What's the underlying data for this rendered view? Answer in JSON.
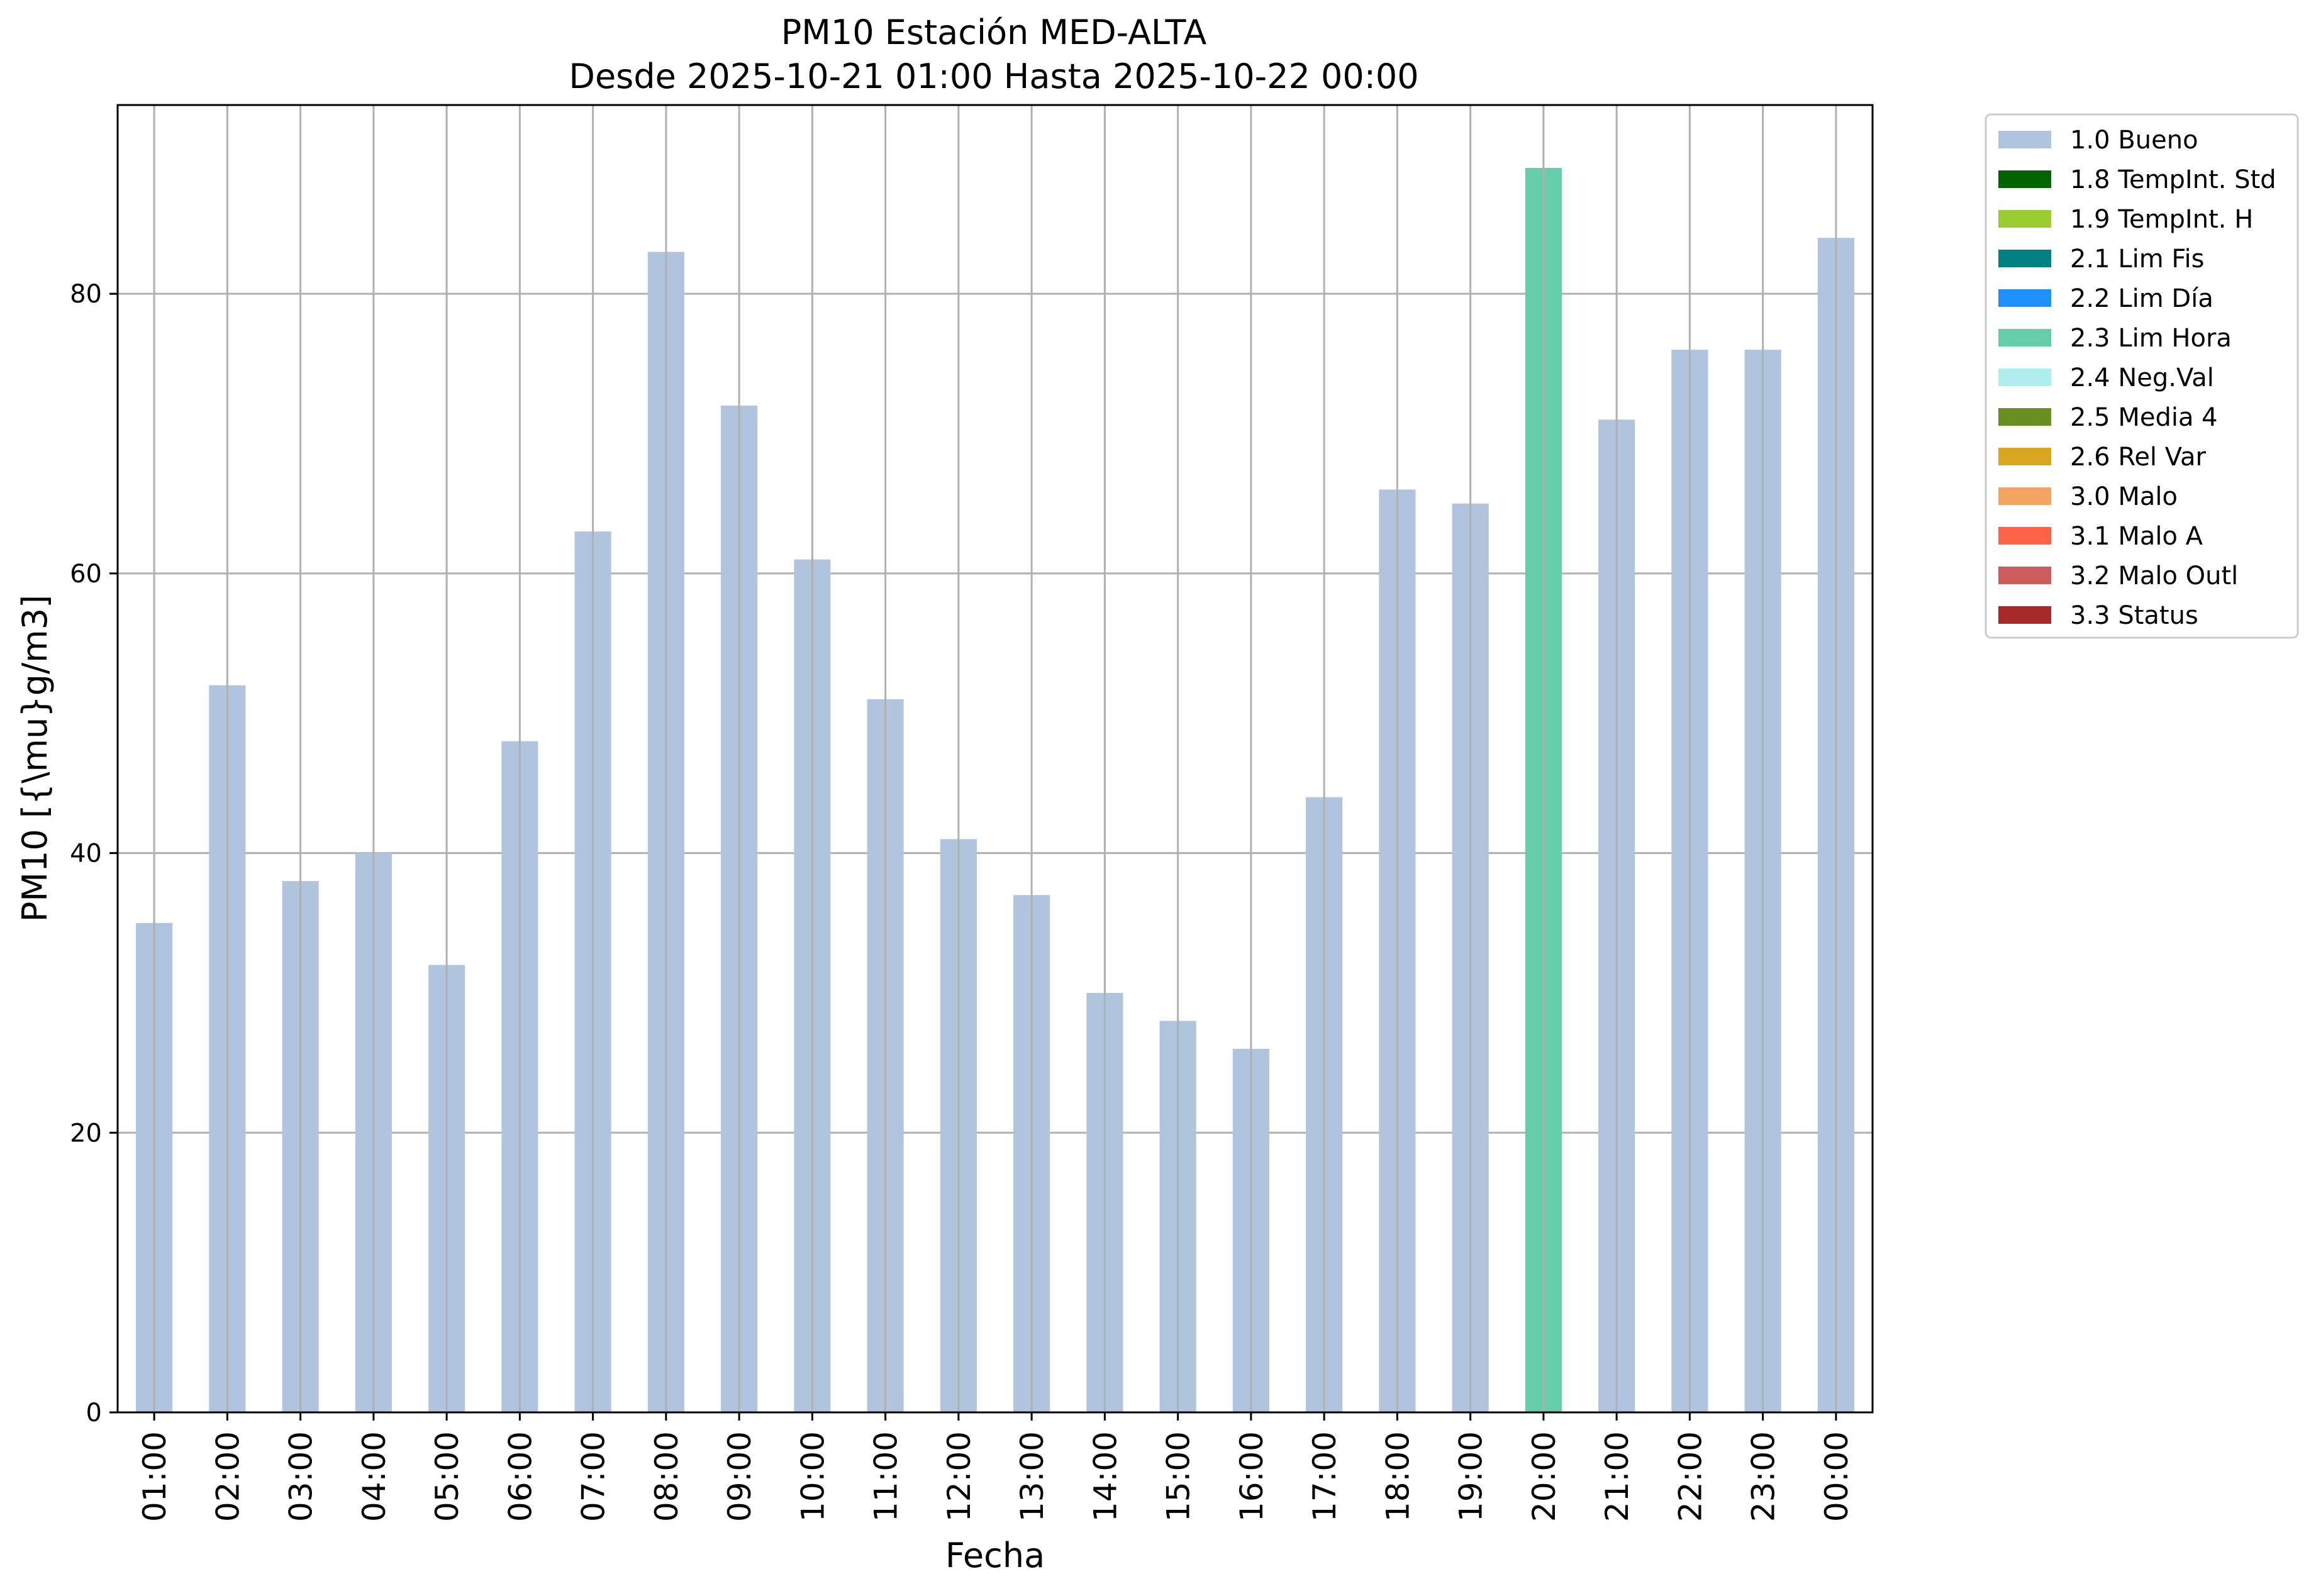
{
  "chart_data": {
    "type": "bar",
    "title": "PM10 Estación MED-ALTA",
    "subtitle": "Desde 2025-10-21 01:00 Hasta 2025-10-22 00:00",
    "xlabel": "Fecha",
    "ylabel": "PM10 [{\\mu}g/m3]",
    "ylim": [
      0,
      93.5
    ],
    "yticks": [
      0,
      20,
      40,
      60,
      80
    ],
    "grid": true,
    "legend_position": "outside-top-right",
    "categories": [
      "01:00",
      "02:00",
      "03:00",
      "04:00",
      "05:00",
      "06:00",
      "07:00",
      "08:00",
      "09:00",
      "10:00",
      "11:00",
      "12:00",
      "13:00",
      "14:00",
      "15:00",
      "16:00",
      "17:00",
      "18:00",
      "19:00",
      "20:00",
      "21:00",
      "22:00",
      "23:00",
      "00:00"
    ],
    "values": [
      35,
      52,
      38,
      40,
      32,
      48,
      63,
      83,
      72,
      61,
      51,
      41,
      37,
      30,
      28,
      26,
      44,
      66,
      65,
      89,
      71,
      76,
      76,
      84
    ],
    "flags": [
      "1.0 Bueno",
      "1.0 Bueno",
      "1.0 Bueno",
      "1.0 Bueno",
      "1.0 Bueno",
      "1.0 Bueno",
      "1.0 Bueno",
      "1.0 Bueno",
      "1.0 Bueno",
      "1.0 Bueno",
      "1.0 Bueno",
      "1.0 Bueno",
      "1.0 Bueno",
      "1.0 Bueno",
      "1.0 Bueno",
      "1.0 Bueno",
      "1.0 Bueno",
      "1.0 Bueno",
      "1.0 Bueno",
      "2.3 Lim Hora",
      "1.0 Bueno",
      "1.0 Bueno",
      "1.0 Bueno",
      "1.0 Bueno"
    ],
    "legend": [
      {
        "label": "1.0 Bueno",
        "color": "#b0c4de"
      },
      {
        "label": "1.8 TempInt. Std",
        "color": "#006400"
      },
      {
        "label": "1.9 TempInt. H",
        "color": "#9acd32"
      },
      {
        "label": "2.1 Lim Fis",
        "color": "#008080"
      },
      {
        "label": "2.2 Lim Día",
        "color": "#1e90ff"
      },
      {
        "label": "2.3 Lim Hora",
        "color": "#66cdaa"
      },
      {
        "label": "2.4 Neg.Val",
        "color": "#afeeee"
      },
      {
        "label": "2.5 Media 4",
        "color": "#6b8e23"
      },
      {
        "label": "2.6 Rel Var",
        "color": "#daa520"
      },
      {
        "label": "3.0 Malo",
        "color": "#f4a460"
      },
      {
        "label": "3.1 Malo A",
        "color": "#ff6347"
      },
      {
        "label": "3.2 Malo Outl",
        "color": "#cd5c5c"
      },
      {
        "label": "3.3 Status",
        "color": "#a52a2a"
      }
    ]
  }
}
